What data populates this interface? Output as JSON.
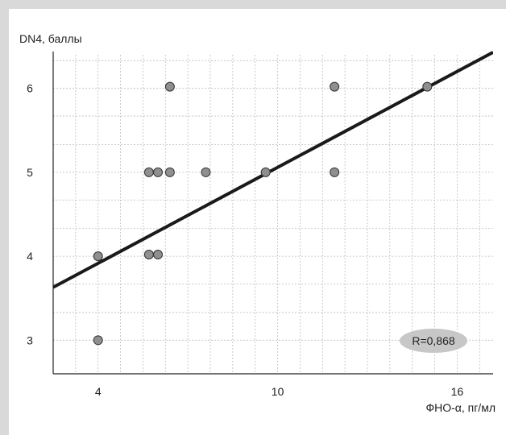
{
  "chart_data": {
    "type": "scatter",
    "ylabel": "DN4, баллы",
    "xlabel": "ФНО-α, пг/мл",
    "xlim": [
      2.5,
      17.2
    ],
    "ylim": [
      2.6,
      6.4
    ],
    "x_ticks": [
      4,
      10,
      16
    ],
    "x_tick_labels": [
      "4",
      "10",
      "16"
    ],
    "y_ticks": [
      3,
      4,
      5,
      6
    ],
    "y_tick_labels": [
      "3",
      "4",
      "5",
      "6"
    ],
    "x_minor_grid": [
      3.25,
      4.75,
      5.5,
      6.25,
      7.0,
      7.75,
      8.5,
      9.25,
      10.75,
      11.5,
      12.25,
      13.0,
      13.75,
      14.5,
      15.25,
      16.75
    ],
    "y_minor_grid": [
      3.33,
      3.67,
      4.33,
      4.67,
      5.33,
      5.67,
      6.33
    ],
    "grid": true,
    "points": [
      {
        "x": 4.0,
        "y": 3.0
      },
      {
        "x": 4.0,
        "y": 4.0
      },
      {
        "x": 5.7,
        "y": 4.02
      },
      {
        "x": 6.0,
        "y": 4.02
      },
      {
        "x": 5.7,
        "y": 5.0
      },
      {
        "x": 6.0,
        "y": 5.0
      },
      {
        "x": 6.4,
        "y": 5.0
      },
      {
        "x": 6.4,
        "y": 6.02
      },
      {
        "x": 7.6,
        "y": 5.0
      },
      {
        "x": 9.6,
        "y": 5.0
      },
      {
        "x": 11.9,
        "y": 5.0
      },
      {
        "x": 11.9,
        "y": 6.02
      },
      {
        "x": 15.0,
        "y": 6.02
      }
    ],
    "trendline": {
      "x": [
        2.5,
        17.2
      ],
      "y": [
        3.63,
        6.43
      ]
    },
    "annotation": "R=0,868",
    "colors": {
      "point_fill": "#8f8f8f",
      "point_stroke": "#333333",
      "line": "#1a1a1a",
      "grid": "#bdbdbd",
      "badge": "#c7c7c7"
    }
  }
}
